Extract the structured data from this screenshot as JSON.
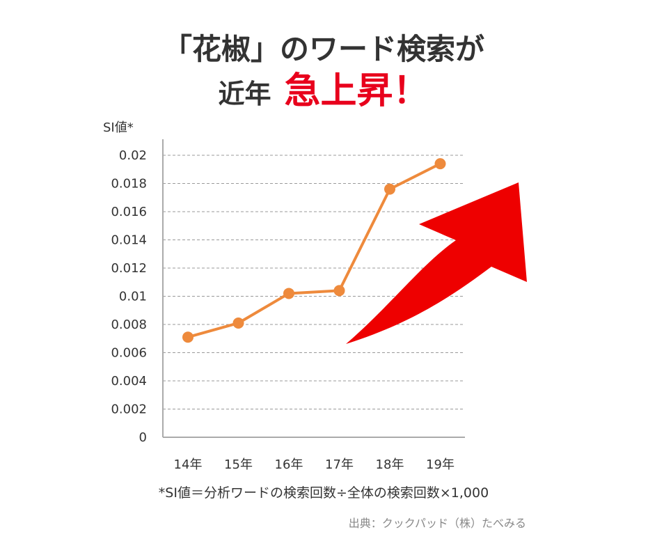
{
  "title": {
    "line1": "「花椒」のワード検索が",
    "line2_prefix": "近年",
    "line2_accent": "急上昇！"
  },
  "colors": {
    "line": "#ee8a3c",
    "arrow": "#ee0000",
    "accent_text": "#e8001c",
    "grid": "#999999"
  },
  "chart_data": {
    "type": "line",
    "ylabel": "SI値*",
    "xlabel": "",
    "categories": [
      "14年",
      "15年",
      "16年",
      "17年",
      "18年",
      "19年"
    ],
    "series": [
      {
        "values": [
          0.0071,
          0.0081,
          0.0102,
          0.0104,
          0.0176,
          0.0194
        ]
      }
    ],
    "ylim": [
      0,
      0.02
    ],
    "yticks": [
      "0",
      "0.002",
      "0.004",
      "0.006",
      "0.008",
      "0.01",
      "0.012",
      "0.014",
      "0.016",
      "0.018",
      "0.02"
    ],
    "grid": true,
    "annotation": "rising red arrow on right"
  },
  "footnote": "*SI値＝分析ワードの検索回数÷全体の検索回数×1,000",
  "source": "出典：クックパッド（株）たべみる"
}
